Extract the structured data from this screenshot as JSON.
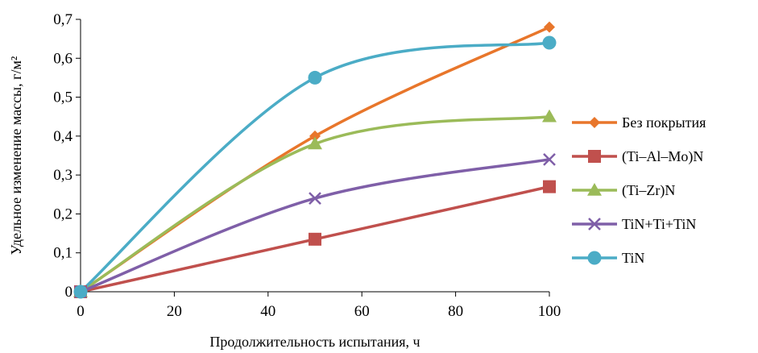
{
  "chart_data": {
    "type": "line",
    "title": "",
    "xlabel": "Продолжительность испытания, ч",
    "ylabel": "Удельное изменение массы, г/м²",
    "xlim": [
      0,
      100
    ],
    "ylim": [
      0,
      0.7
    ],
    "x_ticks": [
      "0",
      "20",
      "40",
      "60",
      "80",
      "100"
    ],
    "y_ticks": [
      "0",
      "0,1",
      "0,2",
      "0,3",
      "0,4",
      "0,5",
      "0,6",
      "0,7"
    ],
    "x_tick_values": [
      0,
      20,
      40,
      60,
      80,
      100
    ],
    "y_tick_values": [
      0,
      0.1,
      0.2,
      0.3,
      0.4,
      0.5,
      0.6,
      0.7
    ],
    "grid": false,
    "legend_position": "right",
    "smooth": true,
    "x": [
      0,
      50,
      100
    ],
    "series": [
      {
        "name": "Без покрытия",
        "values": [
          0,
          0.4,
          0.68
        ],
        "color": "#E8762B",
        "marker": "diamond"
      },
      {
        "name": "(Ti–Al–Mo)N",
        "values": [
          0,
          0.135,
          0.27
        ],
        "color": "#C0504D",
        "marker": "square"
      },
      {
        "name": "(Ti–Zr)N",
        "values": [
          0,
          0.38,
          0.45
        ],
        "color": "#9BBB59",
        "marker": "triangle"
      },
      {
        "name": "TiN+Ti+TiN",
        "values": [
          0,
          0.24,
          0.34
        ],
        "color": "#7F5FA8",
        "marker": "x"
      },
      {
        "name": "TiN",
        "values": [
          0,
          0.55,
          0.64
        ],
        "color": "#4BACC6",
        "marker": "circle"
      }
    ]
  }
}
